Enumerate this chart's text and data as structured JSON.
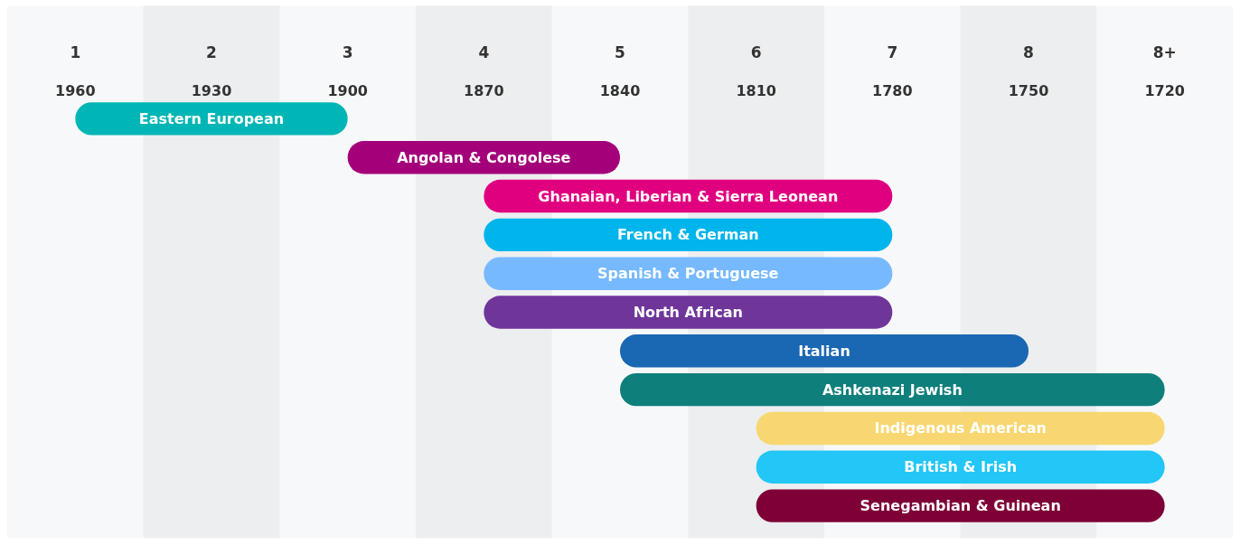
{
  "chart_data": {
    "type": "bar",
    "orientation": "horizontal",
    "categories": [
      "Eastern European",
      "Angolan & Congolese",
      "Ghanaian, Liberian & Sierra Leonean",
      "French & German",
      "Spanish & Portuguese",
      "North African",
      "Italian",
      "Ashkenazi Jewish",
      "Indigenous American",
      "British & Irish",
      "Senegambian & Guinean"
    ],
    "base": [
      1900,
      1840,
      1780,
      1780,
      1780,
      1780,
      1750,
      1720,
      1720,
      1720,
      1720
    ],
    "values": [
      60,
      60,
      90,
      90,
      90,
      90,
      90,
      120,
      90,
      90,
      90
    ],
    "colors": [
      "#00b5b5",
      "#a3007a",
      "#e0007f",
      "#00b4ec",
      "#76b9ff",
      "#6f3599",
      "#1a67b3",
      "#0f7f7b",
      "#f8d772",
      "#22c6f7",
      "#7e0036"
    ],
    "xlim": [
      1975,
      1705
    ],
    "xticks": [
      1960,
      1930,
      1900,
      1870,
      1840,
      1810,
      1780,
      1750,
      1720
    ],
    "x2lim": [
      0.5,
      9.5
    ],
    "x2ticks": [
      1,
      2,
      3,
      4,
      5,
      6,
      7,
      8,
      {
        "value": 9,
        "label": "8+"
      }
    ],
    "bands": [
      {
        "axis": "x",
        "from": 1945,
        "to": 1915,
        "color": "#eceef0"
      },
      {
        "axis": "x",
        "from": 1885,
        "to": 1855,
        "color": "#eceef0"
      },
      {
        "axis": "x",
        "from": 1825,
        "to": 1795,
        "color": "#eceef0"
      },
      {
        "axis": "x",
        "from": 1765,
        "to": 1735,
        "color": "#eceef0"
      }
    ],
    "tick_labels": "x",
    "grid": false
  }
}
